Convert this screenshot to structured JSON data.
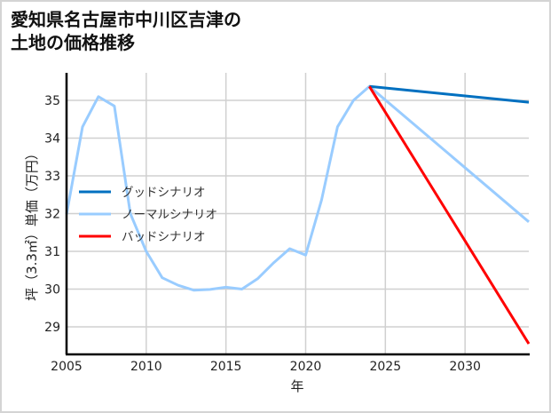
{
  "title_line1": "愛知県名古屋市中川区吉津の",
  "title_line2": "土地の価格推移",
  "chart_data": {
    "type": "line",
    "title": "愛知県名古屋市中川区吉津の土地の価格推移",
    "xlabel": "年",
    "ylabel": "坪（3.3㎡）単価（万円）",
    "xlim": [
      2005,
      2034
    ],
    "ylim": [
      28.27,
      35.73
    ],
    "xticks": [
      2005,
      2010,
      2015,
      2020,
      2025,
      2030
    ],
    "yticks": [
      29,
      30,
      31,
      32,
      33,
      34,
      35
    ],
    "grid": true,
    "legend_position": "center-left",
    "series": [
      {
        "name": "グッドシナリオ",
        "color": "#0070c0",
        "x": [
          2024,
          2034
        ],
        "values": [
          35.37,
          34.95
        ]
      },
      {
        "name": "ノーマルシナリオ",
        "color": "#99ccff",
        "x": [
          2005,
          2006,
          2007,
          2008,
          2009,
          2010,
          2011,
          2012,
          2013,
          2014,
          2015,
          2016,
          2017,
          2018,
          2019,
          2020,
          2021,
          2022,
          2023,
          2024,
          2034
        ],
        "values": [
          31.98,
          34.3,
          35.1,
          34.85,
          32.0,
          31.0,
          30.3,
          30.1,
          29.97,
          29.99,
          30.05,
          30.0,
          30.28,
          30.7,
          31.07,
          30.9,
          32.36,
          34.3,
          35.0,
          35.37,
          31.78
        ]
      },
      {
        "name": "バッドシナリオ",
        "color": "#ff0000",
        "x": [
          2024,
          2034
        ],
        "values": [
          35.37,
          28.55
        ]
      }
    ]
  }
}
